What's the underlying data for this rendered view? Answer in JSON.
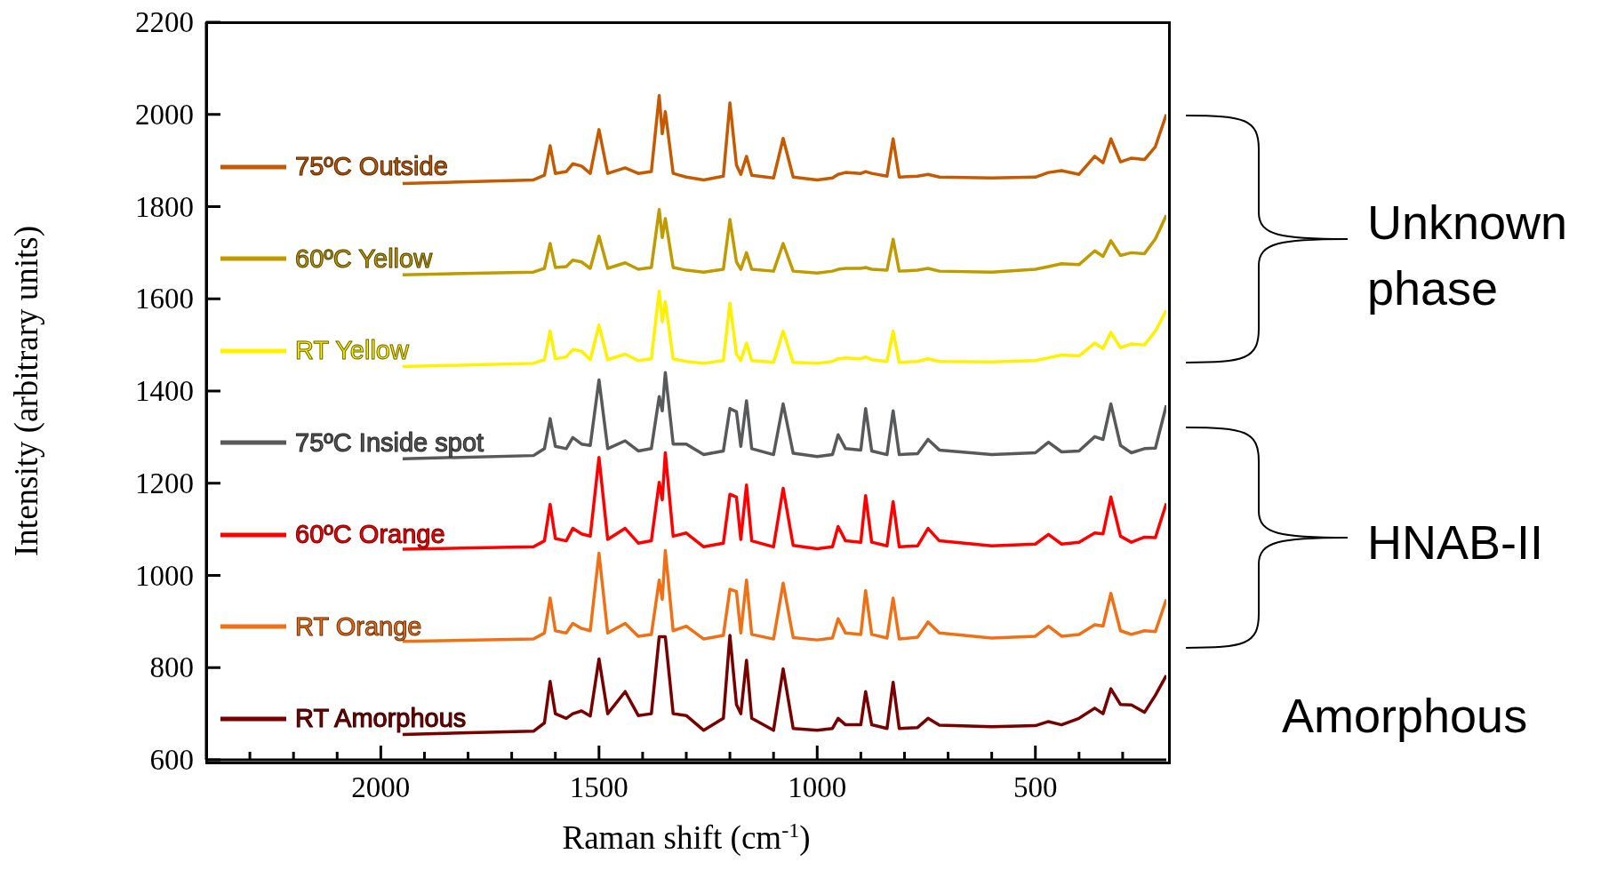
{
  "chart_data": {
    "type": "line",
    "xlabel": "Raman shift (cm$^{-1}$)",
    "ylabel": "Intensity (arbitrary units)",
    "annotations": [
      "Unknown phase",
      "HNAB-II",
      "Amorphous"
    ],
    "legend": "left",
    "xlim": [
      2400,
      200
    ],
    "ylim": [
      600,
      2200
    ],
    "xticks": [
      {
        "value": 2300,
        "label": null
      },
      {
        "value": 2200,
        "label": null
      },
      {
        "value": 2100,
        "label": null
      },
      2000,
      {
        "value": 1900,
        "label": null
      },
      {
        "value": 1800,
        "label": null
      },
      {
        "value": 1700,
        "label": null
      },
      {
        "value": 1600,
        "label": null
      },
      1500,
      {
        "value": 1400,
        "label": null
      },
      {
        "value": 1300,
        "label": null
      },
      {
        "value": 1200,
        "label": null
      },
      {
        "value": 1100,
        "label": null
      },
      1000,
      {
        "value": 900,
        "label": null
      },
      {
        "value": 800,
        "label": null
      },
      {
        "value": 700,
        "label": null
      },
      {
        "value": 600,
        "label": null
      },
      500,
      {
        "value": 400,
        "label": null
      },
      {
        "value": 300,
        "label": null
      }
    ],
    "yticks": [
      600,
      800,
      1000,
      1200,
      1400,
      1600,
      1800,
      2000,
      2200
    ],
    "x": [
      1950,
      1650,
      1625,
      1612,
      1600,
      1575,
      1560,
      1540,
      1520,
      1500,
      1480,
      1440,
      1410,
      1380,
      1362,
      1355,
      1348,
      1330,
      1300,
      1260,
      1215,
      1200,
      1185,
      1175,
      1162,
      1150,
      1100,
      1078,
      1055,
      1000,
      965,
      952,
      935,
      900,
      889,
      875,
      840,
      826,
      812,
      770,
      746,
      720,
      600,
      500,
      470,
      440,
      400,
      364,
      345,
      327,
      305,
      280,
      250,
      225,
      200
    ],
    "series": [
      {
        "name": "75ºC Outside",
        "color": "#c55a00",
        "values": [
          1850,
          1858,
          1868,
          1932,
          1872,
          1876,
          1893,
          1888,
          1872,
          1967,
          1872,
          1884,
          1872,
          1876,
          2041,
          1958,
          2006,
          1872,
          1864,
          1858,
          1866,
          2025,
          1890,
          1870,
          1909,
          1868,
          1862,
          1948,
          1864,
          1858,
          1862,
          1870,
          1874,
          1872,
          1876,
          1872,
          1866,
          1947,
          1864,
          1866,
          1870,
          1864,
          1862,
          1864,
          1874,
          1878,
          1870,
          1909,
          1895,
          1947,
          1897,
          1905,
          1902,
          1930,
          2000
        ]
      },
      {
        "name": "60ºC Yellow",
        "color": "#bf9b00",
        "values": [
          1652,
          1658,
          1666,
          1720,
          1668,
          1670,
          1684,
          1680,
          1666,
          1736,
          1666,
          1678,
          1664,
          1668,
          1794,
          1733,
          1774,
          1668,
          1662,
          1658,
          1664,
          1772,
          1680,
          1664,
          1700,
          1664,
          1660,
          1720,
          1660,
          1656,
          1660,
          1664,
          1666,
          1666,
          1668,
          1664,
          1662,
          1729,
          1660,
          1662,
          1666,
          1660,
          1658,
          1664,
          1670,
          1676,
          1674,
          1704,
          1692,
          1726,
          1694,
          1700,
          1698,
          1730,
          1781
        ]
      },
      {
        "name": "RT Yellow",
        "color": "#fff200",
        "values": [
          1453,
          1460,
          1468,
          1530,
          1470,
          1474,
          1490,
          1486,
          1468,
          1543,
          1468,
          1480,
          1466,
          1470,
          1617,
          1550,
          1594,
          1470,
          1464,
          1460,
          1466,
          1591,
          1480,
          1466,
          1504,
          1466,
          1462,
          1530,
          1462,
          1460,
          1464,
          1470,
          1472,
          1470,
          1474,
          1468,
          1464,
          1530,
          1462,
          1464,
          1470,
          1464,
          1463,
          1466,
          1472,
          1478,
          1476,
          1504,
          1492,
          1527,
          1494,
          1502,
          1500,
          1530,
          1575
        ]
      },
      {
        "name": "75ºC Inside spot",
        "color": "#58595b",
        "values": [
          1253,
          1260,
          1275,
          1340,
          1280,
          1275,
          1299,
          1285,
          1282,
          1424,
          1275,
          1292,
          1270,
          1275,
          1388,
          1357,
          1440,
          1285,
          1285,
          1262,
          1270,
          1362,
          1355,
          1280,
          1379,
          1275,
          1262,
          1372,
          1265,
          1258,
          1262,
          1305,
          1275,
          1272,
          1362,
          1270,
          1262,
          1357,
          1262,
          1264,
          1295,
          1272,
          1262,
          1266,
          1289,
          1268,
          1270,
          1301,
          1295,
          1372,
          1282,
          1266,
          1275,
          1276,
          1369
        ]
      },
      {
        "name": "60ºC Orange",
        "color": "#ff0000",
        "values": [
          1057,
          1062,
          1075,
          1154,
          1080,
          1075,
          1102,
          1090,
          1085,
          1256,
          1078,
          1102,
          1070,
          1075,
          1202,
          1164,
          1266,
          1085,
          1092,
          1062,
          1070,
          1176,
          1170,
          1078,
          1196,
          1075,
          1062,
          1189,
          1065,
          1058,
          1062,
          1106,
          1075,
          1072,
          1173,
          1072,
          1064,
          1160,
          1062,
          1064,
          1102,
          1075,
          1064,
          1068,
          1089,
          1068,
          1072,
          1092,
          1090,
          1170,
          1085,
          1072,
          1083,
          1082,
          1156
        ]
      },
      {
        "name": "RT Orange",
        "color": "#f07015",
        "values": [
          857,
          862,
          875,
          951,
          880,
          875,
          896,
          885,
          880,
          1048,
          875,
          896,
          868,
          872,
          990,
          948,
          1054,
          880,
          890,
          862,
          870,
          970,
          965,
          875,
          990,
          872,
          862,
          983,
          865,
          860,
          864,
          906,
          875,
          872,
          967,
          872,
          864,
          951,
          862,
          866,
          899,
          875,
          864,
          868,
          890,
          868,
          872,
          893,
          890,
          961,
          880,
          872,
          880,
          878,
          948
        ]
      },
      {
        "name": "RT Amorphous",
        "color": "#780000",
        "values": [
          655,
          662,
          680,
          770,
          700,
          690,
          700,
          706,
          695,
          819,
          700,
          748,
          696,
          700,
          867,
          867,
          867,
          700,
          696,
          664,
          690,
          870,
          720,
          700,
          816,
          690,
          664,
          797,
          668,
          664,
          668,
          690,
          676,
          676,
          748,
          676,
          668,
          768,
          668,
          670,
          690,
          675,
          672,
          674,
          683,
          676,
          690,
          712,
          700,
          754,
          720,
          719,
          703,
          740,
          783
        ]
      }
    ]
  }
}
